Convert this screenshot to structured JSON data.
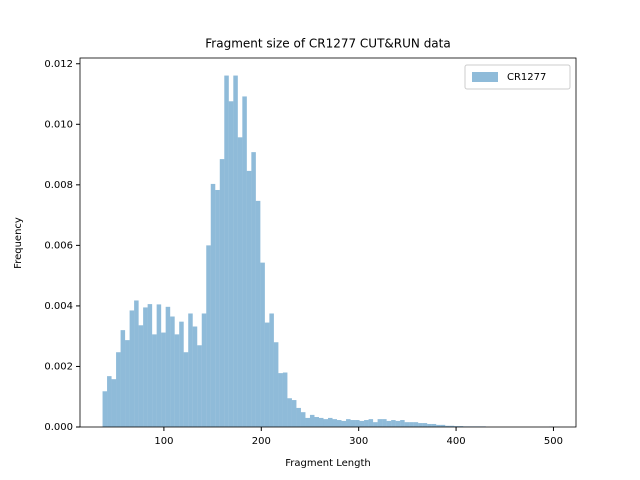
{
  "chart_data": {
    "type": "histogram",
    "title": "Fragment size of CR1277 CUT&RUN data",
    "xlabel": "Fragment Length",
    "ylabel": "Frequency",
    "bins": [
      37,
      41.63,
      46.26,
      50.89,
      55.52,
      60.15,
      64.78,
      69.41,
      74.04,
      78.67,
      83.3,
      87.93,
      92.56,
      97.19,
      101.82,
      106.45,
      111.08,
      115.71,
      120.34,
      124.97,
      129.6,
      134.23,
      138.86,
      143.49,
      148.12,
      152.75,
      157.38,
      162.01,
      166.64,
      171.27,
      175.9,
      180.53,
      185.16,
      189.79,
      194.42,
      199.05,
      203.68,
      208.31,
      212.94,
      217.57,
      222.2,
      226.83,
      231.46,
      236.09,
      240.72,
      245.35,
      249.98,
      254.61,
      259.24,
      263.87,
      268.5,
      273.13,
      277.76,
      282.39,
      287.02,
      291.65,
      296.28,
      300.91,
      305.54,
      310.17,
      314.8,
      319.43,
      324.06,
      328.69,
      333.32,
      337.95,
      342.58,
      347.21,
      351.84,
      356.47,
      361.1,
      365.73,
      370.36,
      374.99,
      379.62,
      384.25,
      388.88,
      393.51,
      398.14,
      402.77,
      407.4,
      412.03,
      416.66,
      421.29,
      425.92,
      430.55,
      435.18,
      439.81,
      444.44,
      449.07,
      453.7,
      458.33,
      462.96,
      467.59,
      472.22,
      476.85,
      481.48,
      486.11,
      490.74,
      495.37,
      500
    ],
    "series": [
      {
        "name": "CR1277",
        "color": "#1f77b4",
        "alpha": 0.5,
        "values": [
          0.00118,
          0.00168,
          0.00158,
          0.00247,
          0.0032,
          0.00287,
          0.00385,
          0.00418,
          0.00336,
          0.00395,
          0.00406,
          0.00306,
          0.00405,
          0.00312,
          0.00397,
          0.00365,
          0.00306,
          0.00348,
          0.00247,
          0.00375,
          0.00332,
          0.0027,
          0.00375,
          0.006,
          0.00803,
          0.00783,
          0.00885,
          0.01161,
          0.01076,
          0.01161,
          0.00957,
          0.01092,
          0.00846,
          0.00908,
          0.00747,
          0.00543,
          0.00345,
          0.00375,
          0.0028,
          0.00178,
          0.0018,
          0.00095,
          0.00089,
          0.00063,
          0.00049,
          0.0003,
          0.0004,
          0.00033,
          0.0003,
          0.00026,
          0.0003,
          0.00026,
          0.00023,
          0.0002,
          0.00026,
          0.00023,
          0.00023,
          0.0002,
          0.00023,
          0.00026,
          0.00016,
          0.00026,
          0.00026,
          0.0002,
          0.00023,
          0.0002,
          0.00023,
          0.00016,
          0.00016,
          0.00016,
          0.00013,
          0.00013,
          0.0001,
          0.0001,
          7e-05,
          7e-05,
          4e-05,
          4e-05,
          3e-05,
          3e-05,
          2e-05,
          2e-05,
          2e-05,
          2e-05,
          2e-05,
          0,
          0,
          0,
          0,
          0,
          0,
          0,
          0,
          0,
          0,
          0,
          0,
          0,
          0,
          1e-05
        ]
      }
    ],
    "xlim": [
      13.85,
      523.15
    ],
    "xticks": [
      100,
      200,
      300,
      400,
      500
    ],
    "ylim": [
      0,
      0.01219
    ],
    "yticks": [
      {
        "value": 0,
        "label": "0.000"
      },
      {
        "value": 0.002,
        "label": "0.002"
      },
      {
        "value": 0.004,
        "label": "0.004"
      },
      {
        "value": 0.006,
        "label": "0.006"
      },
      {
        "value": 0.008,
        "label": "0.008"
      },
      {
        "value": 0.01,
        "label": "0.010"
      },
      {
        "value": 0.012,
        "label": "0.012"
      }
    ],
    "legend": "upper right"
  }
}
